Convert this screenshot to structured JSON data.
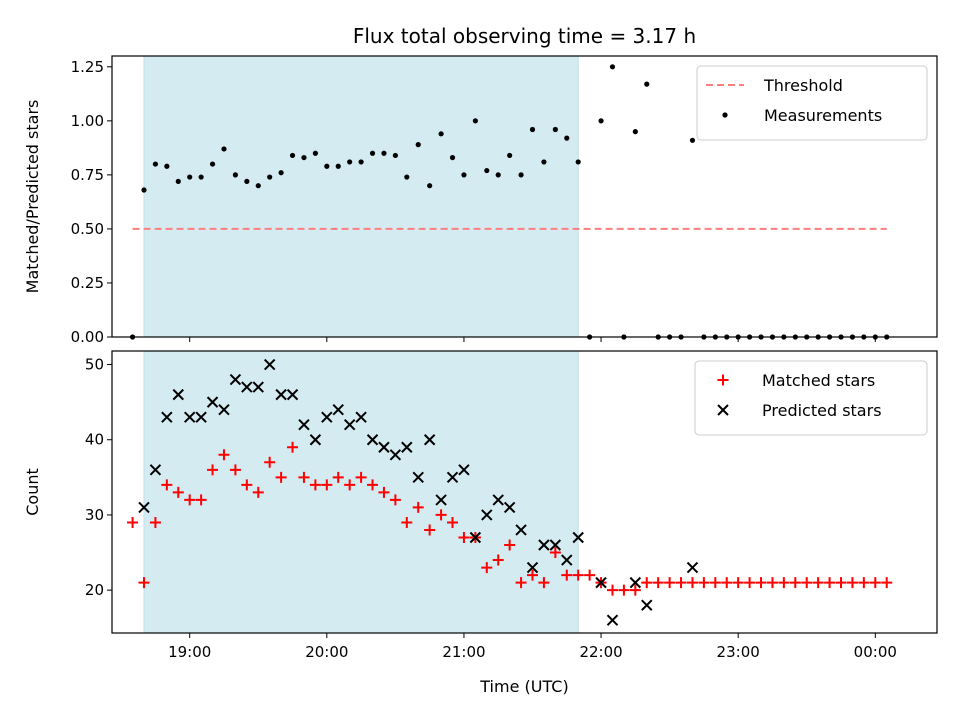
{
  "chart_data": [
    {
      "type": "scatter",
      "title": "Flux total observing time = 3.17 h",
      "xlabel": "",
      "ylabel": "Matched/Predicted stars",
      "ylim": [
        0,
        1.3
      ],
      "xlim": [
        "18:26",
        "00:27"
      ],
      "yticks": [
        "0.00",
        "0.25",
        "0.50",
        "0.75",
        "1.00",
        "1.25"
      ],
      "ytick_values": [
        0,
        0.25,
        0.5,
        0.75,
        1.0,
        1.25
      ],
      "xtick_values": [
        "19:00",
        "20:00",
        "21:00",
        "22:00",
        "23:00",
        "00:00"
      ],
      "show_xtick_labels": false,
      "grid": false,
      "legend_position": "top-right",
      "shaded_interval": {
        "start": "18:40",
        "end": "21:50",
        "color": "#d4ebf1"
      },
      "threshold": {
        "name": "Threshold",
        "y": 0.5,
        "x_start": "18:35",
        "x_end": "00:05",
        "color": "#ff7f7f"
      },
      "series": [
        {
          "name": "Measurements",
          "color": "#000000",
          "points": [
            [
              "18:35",
              0.0
            ],
            [
              "18:40",
              0.68
            ],
            [
              "18:45",
              0.8
            ],
            [
              "18:50",
              0.79
            ],
            [
              "18:55",
              0.72
            ],
            [
              "19:00",
              0.74
            ],
            [
              "19:05",
              0.74
            ],
            [
              "19:10",
              0.8
            ],
            [
              "19:15",
              0.87
            ],
            [
              "19:20",
              0.75
            ],
            [
              "19:25",
              0.72
            ],
            [
              "19:30",
              0.7
            ],
            [
              "19:35",
              0.74
            ],
            [
              "19:40",
              0.76
            ],
            [
              "19:45",
              0.84
            ],
            [
              "19:50",
              0.83
            ],
            [
              "19:55",
              0.85
            ],
            [
              "20:00",
              0.79
            ],
            [
              "20:05",
              0.79
            ],
            [
              "20:10",
              0.81
            ],
            [
              "20:15",
              0.81
            ],
            [
              "20:20",
              0.85
            ],
            [
              "20:25",
              0.85
            ],
            [
              "20:30",
              0.84
            ],
            [
              "20:35",
              0.74
            ],
            [
              "20:40",
              0.89
            ],
            [
              "20:45",
              0.7
            ],
            [
              "20:50",
              0.94
            ],
            [
              "20:55",
              0.83
            ],
            [
              "21:00",
              0.75
            ],
            [
              "21:05",
              1.0
            ],
            [
              "21:10",
              0.77
            ],
            [
              "21:15",
              0.75
            ],
            [
              "21:20",
              0.84
            ],
            [
              "21:25",
              0.75
            ],
            [
              "21:30",
              0.96
            ],
            [
              "21:35",
              0.81
            ],
            [
              "21:40",
              0.96
            ],
            [
              "21:45",
              0.92
            ],
            [
              "21:50",
              0.81
            ],
            [
              "21:55",
              0.0
            ],
            [
              "22:00",
              1.0
            ],
            [
              "22:05",
              1.25
            ],
            [
              "22:10",
              0.0
            ],
            [
              "22:15",
              0.95
            ],
            [
              "22:20",
              1.17
            ],
            [
              "22:25",
              0.0
            ],
            [
              "22:30",
              0.0
            ],
            [
              "22:35",
              0.0
            ],
            [
              "22:40",
              0.91
            ],
            [
              "22:45",
              0.0
            ],
            [
              "22:50",
              0.0
            ],
            [
              "22:55",
              0.0
            ],
            [
              "23:00",
              0.0
            ],
            [
              "23:05",
              0.0
            ],
            [
              "23:10",
              0.0
            ],
            [
              "23:15",
              0.0
            ],
            [
              "23:20",
              0.0
            ],
            [
              "23:25",
              0.0
            ],
            [
              "23:30",
              0.0
            ],
            [
              "23:35",
              0.0
            ],
            [
              "23:40",
              0.0
            ],
            [
              "23:45",
              0.0
            ],
            [
              "23:50",
              0.0
            ],
            [
              "23:55",
              0.0
            ],
            [
              "00:00",
              0.0
            ],
            [
              "00:05",
              0.0
            ]
          ]
        }
      ]
    },
    {
      "type": "scatter",
      "title": "",
      "xlabel": "Time (UTC)",
      "ylabel": "Count",
      "ylim": [
        14.3,
        51.8
      ],
      "xlim": [
        "18:26",
        "00:27"
      ],
      "yticks": [
        "20",
        "30",
        "40",
        "50"
      ],
      "ytick_values": [
        20,
        30,
        40,
        50
      ],
      "xticks": [
        "19:00",
        "20:00",
        "21:00",
        "22:00",
        "23:00",
        "00:00"
      ],
      "xtick_values": [
        "19:00",
        "20:00",
        "21:00",
        "22:00",
        "23:00",
        "00:00"
      ],
      "show_xtick_labels": true,
      "grid": false,
      "legend_position": "top-right",
      "shaded_interval": {
        "start": "18:40",
        "end": "21:50",
        "color": "#d4ebf1"
      },
      "series": [
        {
          "name": "Matched stars",
          "marker": "plus",
          "color": "#ff0000",
          "x": [
            "18:35",
            "18:40",
            "18:45",
            "18:50",
            "18:55",
            "19:00",
            "19:05",
            "19:10",
            "19:15",
            "19:20",
            "19:25",
            "19:30",
            "19:35",
            "19:40",
            "19:45",
            "19:50",
            "19:55",
            "20:00",
            "20:05",
            "20:10",
            "20:15",
            "20:20",
            "20:25",
            "20:30",
            "20:35",
            "20:40",
            "20:45",
            "20:50",
            "20:55",
            "21:00",
            "21:05",
            "21:10",
            "21:15",
            "21:20",
            "21:25",
            "21:30",
            "21:35",
            "21:40",
            "21:45",
            "21:50",
            "21:55",
            "22:00",
            "22:05",
            "22:10",
            "22:15",
            "22:20",
            "22:25",
            "22:30",
            "22:35",
            "22:40",
            "22:45",
            "22:50",
            "22:55",
            "23:00",
            "23:05",
            "23:10",
            "23:15",
            "23:20",
            "23:25",
            "23:30",
            "23:35",
            "23:40",
            "23:45",
            "23:50",
            "23:55",
            "00:00",
            "00:05"
          ],
          "values": [
            29,
            21,
            29,
            34,
            33,
            32,
            32,
            36,
            38,
            36,
            34,
            33,
            37,
            35,
            39,
            35,
            34,
            34,
            35,
            34,
            35,
            34,
            33,
            32,
            29,
            31,
            28,
            30,
            29,
            27,
            27,
            23,
            24,
            26,
            21,
            22,
            21,
            25,
            22,
            22,
            22,
            21,
            20,
            20,
            20,
            21,
            21,
            21,
            21,
            21,
            21,
            21,
            21,
            21,
            21,
            21,
            21,
            21,
            21,
            21,
            21,
            21,
            21,
            21,
            21,
            21,
            21
          ]
        },
        {
          "name": "Predicted stars",
          "marker": "x",
          "color": "#000000",
          "x": [
            "18:40",
            "18:45",
            "18:50",
            "18:55",
            "19:00",
            "19:05",
            "19:10",
            "19:15",
            "19:20",
            "19:25",
            "19:30",
            "19:35",
            "19:40",
            "19:45",
            "19:50",
            "19:55",
            "20:00",
            "20:05",
            "20:10",
            "20:15",
            "20:20",
            "20:25",
            "20:30",
            "20:35",
            "20:40",
            "20:45",
            "20:50",
            "20:55",
            "21:00",
            "21:05",
            "21:10",
            "21:15",
            "21:20",
            "21:25",
            "21:30",
            "21:35",
            "21:40",
            "21:45",
            "21:50",
            "22:00",
            "22:05",
            "22:15",
            "22:20",
            "22:40"
          ],
          "values": [
            31,
            36,
            43,
            46,
            43,
            43,
            45,
            44,
            48,
            47,
            47,
            50,
            46,
            46,
            42,
            40,
            43,
            44,
            42,
            43,
            40,
            39,
            38,
            39,
            35,
            40,
            32,
            35,
            36,
            27,
            30,
            32,
            31,
            28,
            23,
            26,
            26,
            24,
            27,
            21,
            16,
            21,
            18,
            23
          ]
        }
      ]
    }
  ]
}
